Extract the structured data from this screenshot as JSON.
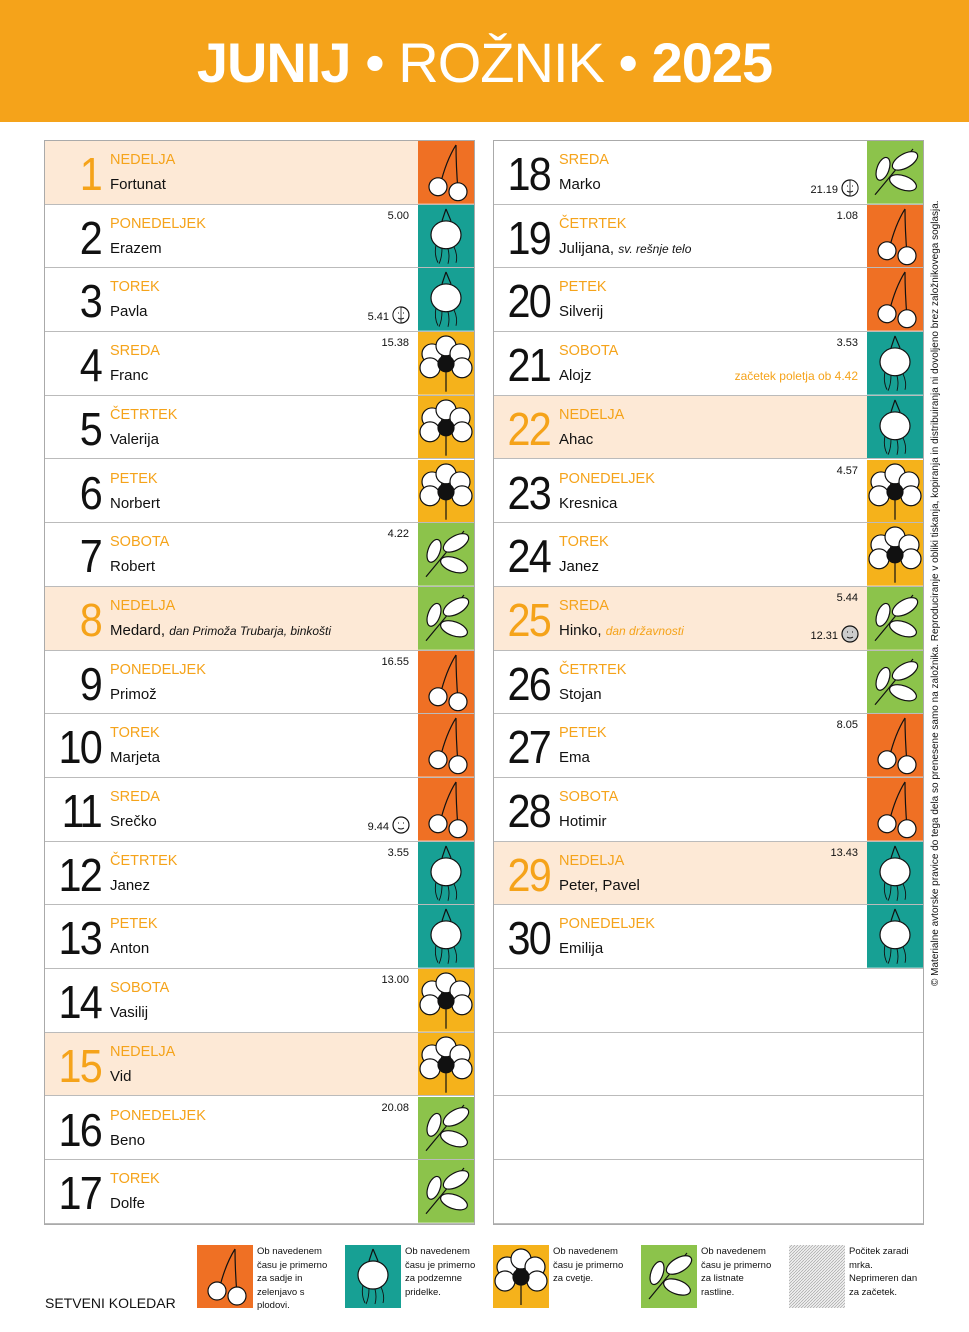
{
  "header": {
    "month": "JUNIJ",
    "month_local": "ROŽNIK",
    "year": "2025",
    "separator": "•"
  },
  "plant_colors": {
    "fruit": "#ef7024",
    "root": "#17a094",
    "flower": "#f5b21b",
    "leaf": "#8cc34b"
  },
  "highlight_color": "#fde9d6",
  "accent_color": "#f5a31a",
  "days": [
    {
      "day": 1,
      "weekday": "NEDELJA",
      "name": "Fortunat",
      "plant": "fruit",
      "highlight": true
    },
    {
      "day": 2,
      "weekday": "PONEDELJEK",
      "name": "Erazem",
      "time": "5.00",
      "plant": "root"
    },
    {
      "day": 3,
      "weekday": "TOREK",
      "name": "Pavla",
      "moon_time": "5.41",
      "moon_phase": "first",
      "plant": "root"
    },
    {
      "day": 4,
      "weekday": "SREDA",
      "name": "Franc",
      "time": "15.38",
      "plant": "flower"
    },
    {
      "day": 5,
      "weekday": "ČETRTEK",
      "name": "Valerija",
      "plant": "flower"
    },
    {
      "day": 6,
      "weekday": "PETEK",
      "name": "Norbert",
      "plant": "flower"
    },
    {
      "day": 7,
      "weekday": "SOBOTA",
      "name": "Robert",
      "time": "4.22",
      "plant": "leaf"
    },
    {
      "day": 8,
      "weekday": "NEDELJA",
      "name": "Medard,",
      "note": "dan Primoža Trubarja, binkošti",
      "note_color": "#111111",
      "plant": "leaf",
      "highlight": true
    },
    {
      "day": 9,
      "weekday": "PONEDELJEK",
      "name": "Primož",
      "time": "16.55",
      "plant": "fruit"
    },
    {
      "day": 10,
      "weekday": "TOREK",
      "name": "Marjeta",
      "plant": "fruit"
    },
    {
      "day": 11,
      "weekday": "SREDA",
      "name": "Srečko",
      "moon_time": "9.44",
      "moon_phase": "full",
      "plant": "fruit"
    },
    {
      "day": 12,
      "weekday": "ČETRTEK",
      "name": "Janez",
      "time": "3.55",
      "plant": "root"
    },
    {
      "day": 13,
      "weekday": "PETEK",
      "name": "Anton",
      "plant": "root"
    },
    {
      "day": 14,
      "weekday": "SOBOTA",
      "name": "Vasilij",
      "time": "13.00",
      "plant": "flower"
    },
    {
      "day": 15,
      "weekday": "NEDELJA",
      "name": "Vid",
      "plant": "flower",
      "highlight": true
    },
    {
      "day": 16,
      "weekday": "PONEDELJEK",
      "name": "Beno",
      "time": "20.08",
      "plant": "leaf"
    },
    {
      "day": 17,
      "weekday": "TOREK",
      "name": "Dolfe",
      "plant": "leaf"
    },
    {
      "day": 18,
      "weekday": "SREDA",
      "name": "Marko",
      "moon_time": "21.19",
      "moon_phase": "last",
      "plant": "leaf"
    },
    {
      "day": 19,
      "weekday": "ČETRTEK",
      "name": "Julijana,",
      "note": "sv. rešnje telo",
      "note_color": "#111111",
      "time": "1.08",
      "plant": "fruit"
    },
    {
      "day": 20,
      "weekday": "PETEK",
      "name": "Silverij",
      "plant": "fruit"
    },
    {
      "day": 21,
      "weekday": "SOBOTA",
      "name": "Alojz",
      "time": "3.53",
      "event": "začetek poletja ob 4.42",
      "plant": "root"
    },
    {
      "day": 22,
      "weekday": "NEDELJA",
      "name": "Ahac",
      "plant": "root",
      "highlight": true
    },
    {
      "day": 23,
      "weekday": "PONEDELJEK",
      "name": "Kresnica",
      "time": "4.57",
      "plant": "flower"
    },
    {
      "day": 24,
      "weekday": "TOREK",
      "name": "Janez",
      "plant": "flower"
    },
    {
      "day": 25,
      "weekday": "SREDA",
      "name": "Hinko,",
      "note": "dan državnosti",
      "note_color": "#f5a31a",
      "time": "5.44",
      "moon_time": "12.31",
      "moon_phase": "new",
      "plant": "leaf",
      "highlight": true
    },
    {
      "day": 26,
      "weekday": "ČETRTEK",
      "name": "Stojan",
      "plant": "leaf"
    },
    {
      "day": 27,
      "weekday": "PETEK",
      "name": "Ema",
      "time": "8.05",
      "plant": "fruit"
    },
    {
      "day": 28,
      "weekday": "SOBOTA",
      "name": "Hotimir",
      "plant": "fruit"
    },
    {
      "day": 29,
      "weekday": "NEDELJA",
      "name": "Peter, Pavel",
      "time": "13.43",
      "plant": "root",
      "highlight": true
    },
    {
      "day": 30,
      "weekday": "PONEDELJEK",
      "name": "Emilija",
      "plant": "root"
    }
  ],
  "footer": {
    "label": "SETVENI KOLEDAR",
    "legend": [
      {
        "plant": "fruit",
        "text": "Ob navedenem času je primerno za sadje in zelenjavo s plodovi."
      },
      {
        "plant": "root",
        "text": "Ob navedenem času je primerno za podzemne pridelke."
      },
      {
        "plant": "flower",
        "text": "Ob navedenem času je primerno za cvetje."
      },
      {
        "plant": "leaf",
        "text": "Ob navedenem času je primerno za listnate rastline."
      },
      {
        "plant": "eclipse",
        "text": "Počitek zaradi mrka. Neprimeren dan za začetek."
      }
    ]
  },
  "side_note": "© Materialne avtorske pravice do tega dela so prenesene samo na založnika. Reproduciranje v obliki tiskanja, kopiranja in distribuiranja ni dovoljeno brez založnikovega soglasja."
}
